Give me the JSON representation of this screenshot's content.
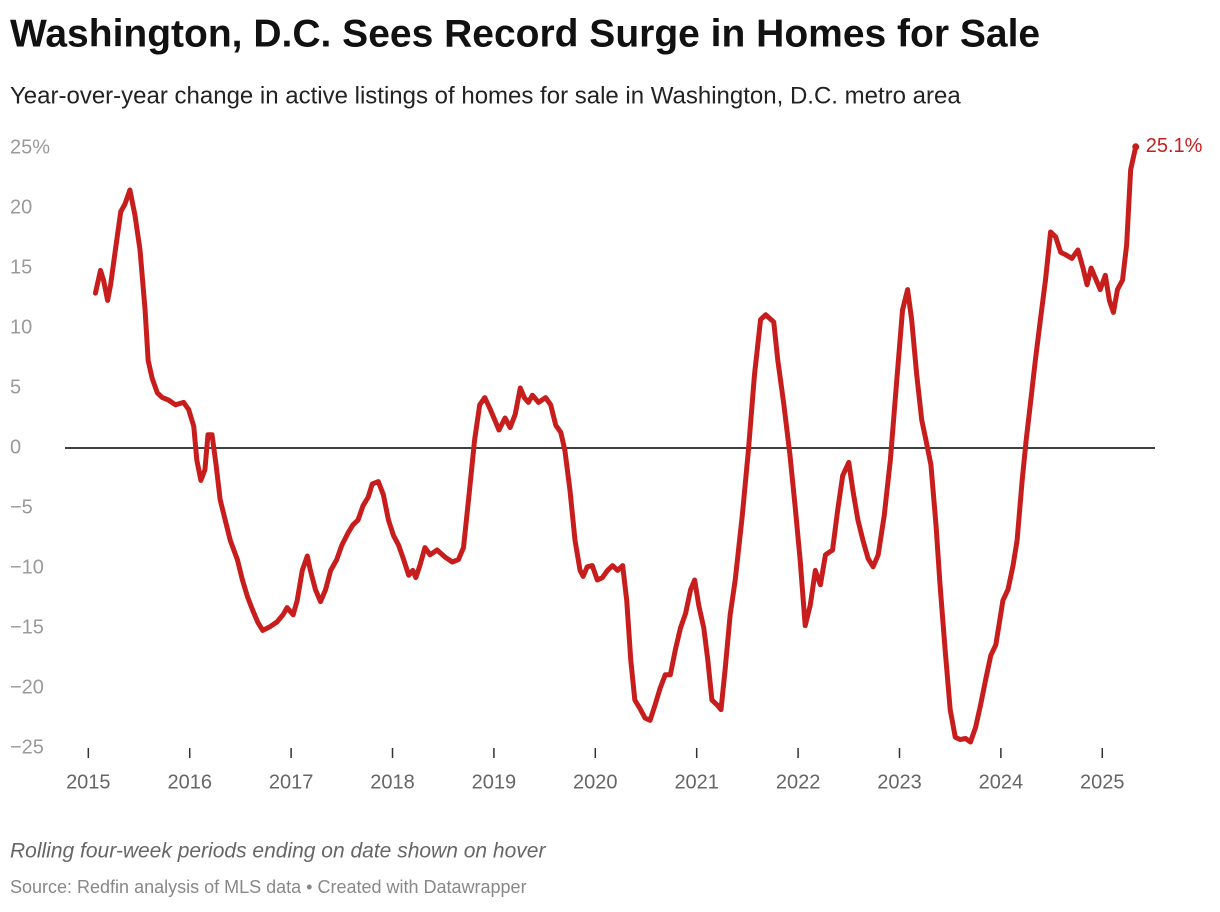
{
  "chart_data": {
    "type": "line",
    "title": "Washington, D.C. Sees Record Surge in Homes for Sale",
    "subtitle": "Year-over-year change in active listings of homes for sale in Washington, D.C. metro area",
    "note": "Rolling four-week periods ending on date shown on hover",
    "source": "Source: Redfin analysis of MLS data • Created with Datawrapper",
    "xlim": [
      2014.77,
      2025.52
    ],
    "xticks": [
      2015,
      2016,
      2017,
      2018,
      2019,
      2020,
      2021,
      2022,
      2023,
      2024,
      2025
    ],
    "ylim": [
      -25,
      25
    ],
    "yticks": [
      {
        "value": 25,
        "label": "25%"
      },
      20,
      15,
      10,
      5,
      0,
      {
        "value": -5,
        "label": "−5"
      },
      {
        "value": -10,
        "label": "−10"
      },
      {
        "value": -15,
        "label": "−15"
      },
      {
        "value": -20,
        "label": "−20"
      },
      {
        "value": -25,
        "label": "−25"
      }
    ],
    "x": [
      2015.07,
      2015.12,
      2015.15,
      2015.19,
      2015.22,
      2015.27,
      2015.32,
      2015.36,
      2015.41,
      2015.46,
      2015.51,
      2015.56,
      2015.59,
      2015.63,
      2015.68,
      2015.73,
      2015.79,
      2015.86,
      2015.94,
      2015.99,
      2016.04,
      2016.07,
      2016.11,
      2016.15,
      2016.18,
      2016.22,
      2016.26,
      2016.3,
      2016.35,
      2016.4,
      2016.47,
      2016.52,
      2016.57,
      2016.62,
      2016.67,
      2016.72,
      2016.79,
      2016.86,
      2016.92,
      2016.96,
      2017.02,
      2017.06,
      2017.11,
      2017.16,
      2017.19,
      2017.24,
      2017.29,
      2017.34,
      2017.39,
      2017.45,
      2017.5,
      2017.56,
      2017.61,
      2017.66,
      2017.71,
      2017.76,
      2017.8,
      2017.86,
      2017.91,
      2017.96,
      2018.01,
      2018.06,
      2018.11,
      2018.16,
      2018.2,
      2018.23,
      2018.27,
      2018.32,
      2018.37,
      2018.44,
      2018.52,
      2018.59,
      2018.65,
      2018.7,
      2018.75,
      2018.81,
      2018.86,
      2018.91,
      2018.96,
      2019.01,
      2019.05,
      2019.11,
      2019.16,
      2019.21,
      2019.26,
      2019.3,
      2019.34,
      2019.38,
      2019.44,
      2019.51,
      2019.56,
      2019.61,
      2019.66,
      2019.7,
      2019.75,
      2019.8,
      2019.85,
      2019.88,
      2019.92,
      2019.97,
      2020.02,
      2020.07,
      2020.12,
      2020.17,
      2020.22,
      2020.27,
      2020.31,
      2020.35,
      2020.39,
      2020.44,
      2020.49,
      2020.54,
      2020.59,
      2020.64,
      2020.69,
      2020.74,
      2020.79,
      2020.84,
      2020.89,
      2020.94,
      2020.98,
      2021.02,
      2021.07,
      2021.11,
      2021.15,
      2021.2,
      2021.24,
      2021.28,
      2021.33,
      2021.38,
      2021.45,
      2021.51,
      2021.57,
      2021.63,
      2021.68,
      2021.76,
      2021.8,
      2021.86,
      2021.92,
      2021.97,
      2022.02,
      2022.07,
      2022.12,
      2022.17,
      2022.22,
      2022.27,
      2022.34,
      2022.39,
      2022.44,
      2022.5,
      2022.54,
      2022.59,
      2022.64,
      2022.69,
      2022.74,
      2022.79,
      2022.85,
      2022.91,
      2022.97,
      2023.03,
      2023.08,
      2023.12,
      2023.17,
      2023.22,
      2023.26,
      2023.31,
      2023.36,
      2023.4,
      2023.45,
      2023.5,
      2023.55,
      2023.6,
      2023.65,
      2023.7,
      2023.75,
      2023.8,
      2023.85,
      2023.9,
      2023.95,
      2023.99,
      2024.02,
      2024.07,
      2024.12,
      2024.16,
      2024.21,
      2024.25,
      2024.29,
      2024.34,
      2024.39,
      2024.44,
      2024.49,
      2024.54,
      2024.59,
      2024.64,
      2024.7,
      2024.76,
      2024.81,
      2024.85,
      2024.89,
      2024.94,
      2024.98,
      2025.03,
      2025.07,
      2025.11,
      2025.15,
      2025.2,
      2025.24,
      2025.28,
      2025.33
    ],
    "series": [
      {
        "color": "#c71e1d",
        "values": [
          12.9,
          14.8,
          14,
          12.3,
          13.6,
          16.7,
          19.7,
          20.3,
          21.5,
          19.4,
          16.5,
          11.5,
          7.3,
          5.8,
          4.6,
          4.2,
          4,
          3.6,
          3.8,
          3.2,
          1.8,
          -1,
          -2.7,
          -1.8,
          1.1,
          1.1,
          -1.4,
          -4.3,
          -6,
          -7.7,
          -9.3,
          -11,
          -12.4,
          -13.5,
          -14.5,
          -15.2,
          -14.9,
          -14.5,
          -13.9,
          -13.3,
          -13.9,
          -12.7,
          -10.2,
          -9,
          -10.2,
          -11.8,
          -12.8,
          -11.8,
          -10.2,
          -9.3,
          -8.1,
          -7.1,
          -6.4,
          -6,
          -4.8,
          -4.1,
          -3,
          -2.8,
          -3.9,
          -6,
          -7.3,
          -8.1,
          -9.3,
          -10.6,
          -10.2,
          -10.8,
          -9.8,
          -8.3,
          -8.9,
          -8.5,
          -9.1,
          -9.5,
          -9.3,
          -8.3,
          -4.3,
          0.7,
          3.6,
          4.2,
          3.3,
          2.3,
          1.5,
          2.5,
          1.7,
          2.8,
          5,
          4.2,
          3.8,
          4.4,
          3.8,
          4.2,
          3.6,
          1.9,
          1.3,
          -0.2,
          -3.5,
          -7.7,
          -10.2,
          -10.7,
          -9.9,
          -9.8,
          -11,
          -10.8,
          -10.2,
          -9.8,
          -10.2,
          -9.8,
          -12.7,
          -17.7,
          -21,
          -21.7,
          -22.5,
          -22.7,
          -21.4,
          -20,
          -18.9,
          -18.9,
          -16.8,
          -15,
          -13.8,
          -11.8,
          -11,
          -13.1,
          -15,
          -17.7,
          -21,
          -21.4,
          -21.8,
          -18.5,
          -13.9,
          -11,
          -5.6,
          -0.2,
          6.1,
          10.7,
          11.1,
          10.5,
          7.3,
          3.6,
          -0.6,
          -4.8,
          -9.3,
          -14.8,
          -13.1,
          -10.2,
          -11.4,
          -8.9,
          -8.5,
          -5.2,
          -2.3,
          -1.2,
          -3.5,
          -6,
          -7.7,
          -9.2,
          -9.9,
          -8.9,
          -5.6,
          -1,
          5.3,
          11.5,
          13.2,
          10.7,
          6.1,
          2.3,
          0.7,
          -1.4,
          -6.4,
          -11.4,
          -16.8,
          -21.8,
          -24.1,
          -24.3,
          -24.2,
          -24.5,
          -23.3,
          -21.4,
          -19.3,
          -17.3,
          -16.4,
          -14.3,
          -12.7,
          -11.8,
          -9.8,
          -7.7,
          -2.7,
          0.7,
          3.6,
          7.3,
          10.7,
          14,
          18,
          17.6,
          16.3,
          16.1,
          15.8,
          16.5,
          15,
          13.6,
          15,
          14,
          13.2,
          14.4,
          12.3,
          11.3,
          13.2,
          14,
          16.9,
          23.2,
          25.1
        ],
        "value_labels": [
          null,
          null,
          null,
          null,
          null,
          null,
          null,
          null,
          null,
          null,
          null,
          null,
          null,
          null,
          null,
          null,
          null,
          null,
          null,
          null,
          null,
          null,
          null,
          null,
          null,
          null,
          null,
          null,
          null,
          null,
          null,
          null,
          null,
          null,
          null,
          null,
          null,
          null,
          null,
          null,
          null,
          null,
          null,
          null,
          null,
          null,
          null,
          null,
          null,
          null,
          null,
          null,
          null,
          null,
          null,
          null,
          null,
          null,
          null,
          null,
          null,
          null,
          null,
          null,
          null,
          null,
          null,
          null,
          null,
          null,
          null,
          null,
          null,
          null,
          null,
          null,
          null,
          null,
          null,
          null,
          null,
          null,
          null,
          null,
          null,
          null,
          null,
          null,
          null,
          null,
          null,
          null,
          null,
          null,
          null,
          null,
          null,
          null,
          null,
          null,
          null,
          null,
          null,
          null,
          null,
          null,
          null,
          null,
          null,
          null,
          null,
          null,
          null,
          null,
          null,
          null,
          null,
          null,
          null,
          null,
          null,
          null,
          null,
          null,
          null,
          null,
          null,
          null,
          null,
          null,
          null,
          null,
          null,
          null,
          null,
          null,
          null,
          null,
          null,
          null,
          null,
          null,
          null,
          null,
          null,
          null,
          null,
          null,
          null,
          null,
          null,
          null,
          null,
          null,
          null,
          null,
          null,
          null,
          null,
          null,
          null,
          null,
          null,
          null,
          null,
          null,
          null,
          null,
          null,
          null,
          null,
          null,
          null,
          null,
          null,
          null,
          null,
          null,
          null,
          null,
          null,
          null,
          null,
          null,
          null,
          null,
          null,
          null,
          null,
          null,
          null,
          null,
          null,
          null,
          null,
          null,
          null,
          null,
          null,
          null,
          null,
          null,
          null,
          null,
          null,
          null,
          null,
          null,
          "25.1%"
        ]
      }
    ]
  }
}
